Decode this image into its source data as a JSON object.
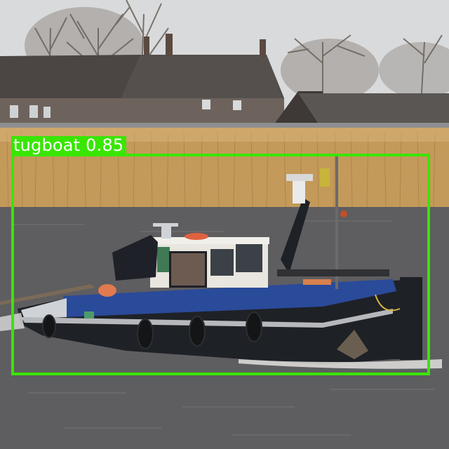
{
  "detections": [
    {
      "label": "tugboat",
      "score": "0.85",
      "box_color": "#39e600"
    }
  ],
  "colors": {
    "sky": "#d9dadb",
    "reeds": "#c49a5a",
    "water": "#5e5d60",
    "hull_blue": "#2a4a9a",
    "hull_black": "#1e2126",
    "cabin_white": "#e8e6df"
  }
}
